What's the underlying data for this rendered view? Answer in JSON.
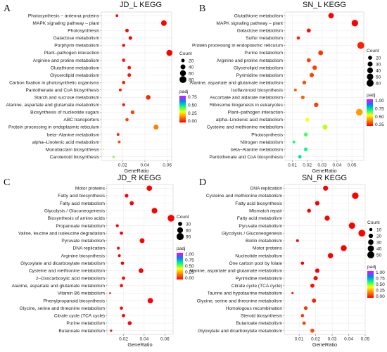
{
  "chart_data": [
    {
      "type": "scatter",
      "letter": "A",
      "title": "JD_L KEGG",
      "xlabel": "GeneRatio",
      "xlim": [
        0.001,
        0.064
      ],
      "xticks": [
        0.02,
        0.04,
        0.06
      ],
      "xtick_labels": [
        "0.02",
        "0.04",
        "0.06"
      ],
      "count_legend": {
        "title": "Count",
        "values": [
          20,
          40,
          60,
          80
        ],
        "labels": [
          "20",
          "40",
          "60",
          "80"
        ],
        "max": 90
      },
      "color_legend": {
        "title": "padj",
        "min": 0,
        "max": 1,
        "labels": [
          "0.75",
          "0.50",
          "0.25",
          "0.00"
        ]
      },
      "categories": [
        "Photosynthesis – antenna proteins",
        "MAPK signaling pathway – plant",
        "Photosynthesis",
        "Galactose metabolism",
        "Porphyrin metabolism",
        "Plant–pathogen interaction",
        "Arginine and proline metabolism",
        "Glutathione metabolism",
        "Glycerolipid metabolism",
        "Carbon fixation in photosynthetic organisms",
        "Pantothenate and CoA biosynthesis",
        "Starch and sucrose metabolism",
        "Alanine, aspartate and glutamate metabolism",
        "Biosynthesis of nucleotide sugars",
        "ABC transporters",
        "Protein processing in endoplasmic reticulum",
        "beta–Alanine metabolism",
        "alpha–Linolenic acid metabolism",
        "Monobactam biosynthesis",
        "Carotenoid biosynthesis"
      ],
      "x": [
        0.015,
        0.057,
        0.024,
        0.027,
        0.021,
        0.062,
        0.021,
        0.026,
        0.026,
        0.021,
        0.018,
        0.043,
        0.021,
        0.029,
        0.024,
        0.05,
        0.016,
        0.017,
        0.003,
        0.012
      ],
      "count": [
        12,
        52,
        20,
        22,
        16,
        62,
        18,
        20,
        21,
        18,
        14,
        36,
        16,
        24,
        18,
        42,
        12,
        13,
        3,
        9
      ],
      "padj": [
        0.0,
        0.0,
        0.0,
        0.0,
        0.01,
        0.0,
        0.03,
        0.03,
        0.03,
        0.04,
        0.05,
        0.06,
        0.05,
        0.1,
        0.1,
        0.2,
        0.05,
        0.12,
        0.35,
        0.5
      ]
    },
    {
      "type": "scatter",
      "letter": "B",
      "title": "SN_L KEGG",
      "xlabel": "GeneRatio",
      "xlim": [
        0.005,
        0.058
      ],
      "xticks": [
        0.01,
        0.02,
        0.03,
        0.04,
        0.05
      ],
      "xtick_labels": [
        "0.01",
        "0.02",
        "0.03",
        "0.04",
        "0.05"
      ],
      "count_legend": {
        "title": "Count",
        "values": [
          20,
          30,
          40,
          50,
          60
        ],
        "labels": [
          "20",
          "30",
          "40",
          "50",
          "60"
        ],
        "max": 65
      },
      "color_legend": {
        "title": "padj",
        "min": 0,
        "max": 1,
        "labels": [
          "1.00",
          "0.75",
          "0.50",
          "0.25"
        ]
      },
      "categories": [
        "Glutathione metabolism",
        "MAPK signaling pathway – plant",
        "Galactose metabolism",
        "Sulfur metabolism",
        "Protein processing in endoplasmic reticulum",
        "Purine metabolism",
        "Arginine and proline metabolism",
        "Glycerolipid metabolism",
        "Pyrimidine metabolism",
        "Alanine, aspartate and glutamate metabolism",
        "Isoflavonoid biosynthesis",
        "Ascorbate and aldarate metabolism",
        "Ribosome biogenesis in eukaryotes",
        "Plant–pathogen interaction",
        "alpha–Linolenic acid metabolism",
        "Cysteine and methionine metabolism",
        "Photosynthesis",
        "Nitrogen metabolism",
        "beta–Alanine metabolism",
        "Pantothenate and CoA biosynthesis"
      ],
      "x": [
        0.036,
        0.052,
        0.021,
        0.014,
        0.056,
        0.029,
        0.021,
        0.025,
        0.023,
        0.018,
        0.012,
        0.017,
        0.026,
        0.055,
        0.02,
        0.032,
        0.019,
        0.011,
        0.019,
        0.015
      ],
      "count": [
        36,
        52,
        20,
        13,
        58,
        28,
        20,
        24,
        22,
        17,
        10,
        16,
        24,
        56,
        18,
        31,
        18,
        9,
        17,
        14
      ],
      "padj": [
        0.0,
        0.0,
        0.02,
        0.05,
        0.05,
        0.08,
        0.1,
        0.1,
        0.1,
        0.12,
        0.15,
        0.15,
        0.1,
        0.25,
        0.4,
        0.45,
        0.55,
        0.6,
        0.6,
        0.65
      ]
    },
    {
      "type": "scatter",
      "letter": "C",
      "title": "JD_R KEGG",
      "xlabel": "GeneRatio",
      "xlim": [
        0.004,
        0.068
      ],
      "xticks": [
        0.02,
        0.04,
        0.06
      ],
      "xtick_labels": [
        "0.02",
        "0.04",
        "0.06"
      ],
      "count_legend": {
        "title": "Count",
        "values": [
          30,
          60,
          90
        ],
        "labels": [
          "30",
          "60",
          "90"
        ],
        "max": 95
      },
      "color_legend": {
        "title": "padj",
        "min": 0,
        "max": 1,
        "labels": [
          "1.00",
          "0.75",
          "0.50",
          "0.25",
          "0.00"
        ]
      },
      "categories": [
        "Motor proteins",
        "Fatty acid biosynthesis",
        "Fatty acid metabolism",
        "Glycolysis / Gluconeogenesis",
        "Biosynthesis of amino acids",
        "Propanoate metabolism",
        "Valine, leucine and isoleucine degradation",
        "Pyruvate metabolism",
        "DNA replication",
        "Arginine biosynthesis",
        "Glyoxylate and dicarboxylate metabolism",
        "Cysteine and methionine metabolism",
        "2–Oxocarboxylic acid metabolism",
        "Alanine, aspartate and glutamate metabolism",
        "Vitamin B6 metabolism",
        "Phenylpropanoid biosynthesis",
        "Glycine, serine and threonine metabolism",
        "Citrate cycle (TCA cycle)",
        "Purine metabolism",
        "Butanoate metabolism"
      ],
      "x": [
        0.045,
        0.023,
        0.028,
        0.05,
        0.066,
        0.014,
        0.018,
        0.038,
        0.015,
        0.016,
        0.019,
        0.037,
        0.02,
        0.018,
        0.007,
        0.046,
        0.018,
        0.02,
        0.026,
        0.008
      ],
      "count": [
        52,
        24,
        30,
        58,
        82,
        16,
        20,
        42,
        15,
        15,
        20,
        40,
        20,
        18,
        6,
        52,
        18,
        20,
        28,
        9
      ],
      "padj": [
        0.0,
        0.0,
        0.0,
        0.0,
        0.0,
        0.0,
        0.0,
        0.0,
        0.0,
        0.0,
        0.0,
        0.0,
        0.0,
        0.0,
        0.0,
        0.0,
        0.0,
        0.0,
        0.0,
        0.02
      ]
    },
    {
      "type": "scatter",
      "letter": "D",
      "title": "SN_R KEGG",
      "xlabel": "GeneRatio",
      "xlim": [
        0.001,
        0.05
      ],
      "xticks": [
        0.01,
        0.02,
        0.03,
        0.04,
        0.05
      ],
      "xtick_labels": [
        "0.01",
        "0.02",
        "0.03",
        "0.04",
        "0.05"
      ],
      "count_legend": {
        "title": "Count",
        "values": [
          10,
          20,
          30,
          40,
          50
        ],
        "labels": [
          "10",
          "20",
          "30",
          "40",
          "50"
        ],
        "max": 55
      },
      "color_legend": {
        "title": "padj",
        "min": 0,
        "max": 1,
        "labels": [
          "1.00",
          "0.75",
          "0.50",
          "0.25",
          "0.00"
        ]
      },
      "categories": [
        "DNA replication",
        "Cysteine and methionine metabolism",
        "Fatty acid biosynthesis",
        "Mismatch repair",
        "Fatty acid metabolism",
        "Pyruvate metabolism",
        "Glycolysis / Gluconeogenesis",
        "Biotin metabolism",
        "Motor proteins",
        "Nucleotide metabolism",
        "One carbon pool by folate",
        "Alanine, aspartate and glutamate metabolism",
        "Pyrimidine metabolism",
        "Citrate cycle (TCA cycle)",
        "Taurine and hypotaurine metabolism",
        "Glycine, serine and threonine metabolism",
        "Homologous recombination",
        "Steroid biosynthesis",
        "Butanoate metabolism",
        "Glyoxylate and dicarboxylate metabolism"
      ],
      "x": [
        0.026,
        0.044,
        0.021,
        0.016,
        0.027,
        0.042,
        0.048,
        0.009,
        0.037,
        0.029,
        0.012,
        0.021,
        0.02,
        0.018,
        0.006,
        0.019,
        0.014,
        0.012,
        0.013,
        0.018
      ],
      "count": [
        26,
        44,
        20,
        15,
        27,
        42,
        48,
        8,
        37,
        29,
        11,
        20,
        19,
        17,
        5,
        18,
        13,
        11,
        12,
        17
      ],
      "padj": [
        0.0,
        0.0,
        0.0,
        0.0,
        0.0,
        0.0,
        0.0,
        0.0,
        0.0,
        0.0,
        0.0,
        0.0,
        0.01,
        0.02,
        0.03,
        0.05,
        0.06,
        0.08,
        0.1,
        0.12
      ]
    }
  ]
}
